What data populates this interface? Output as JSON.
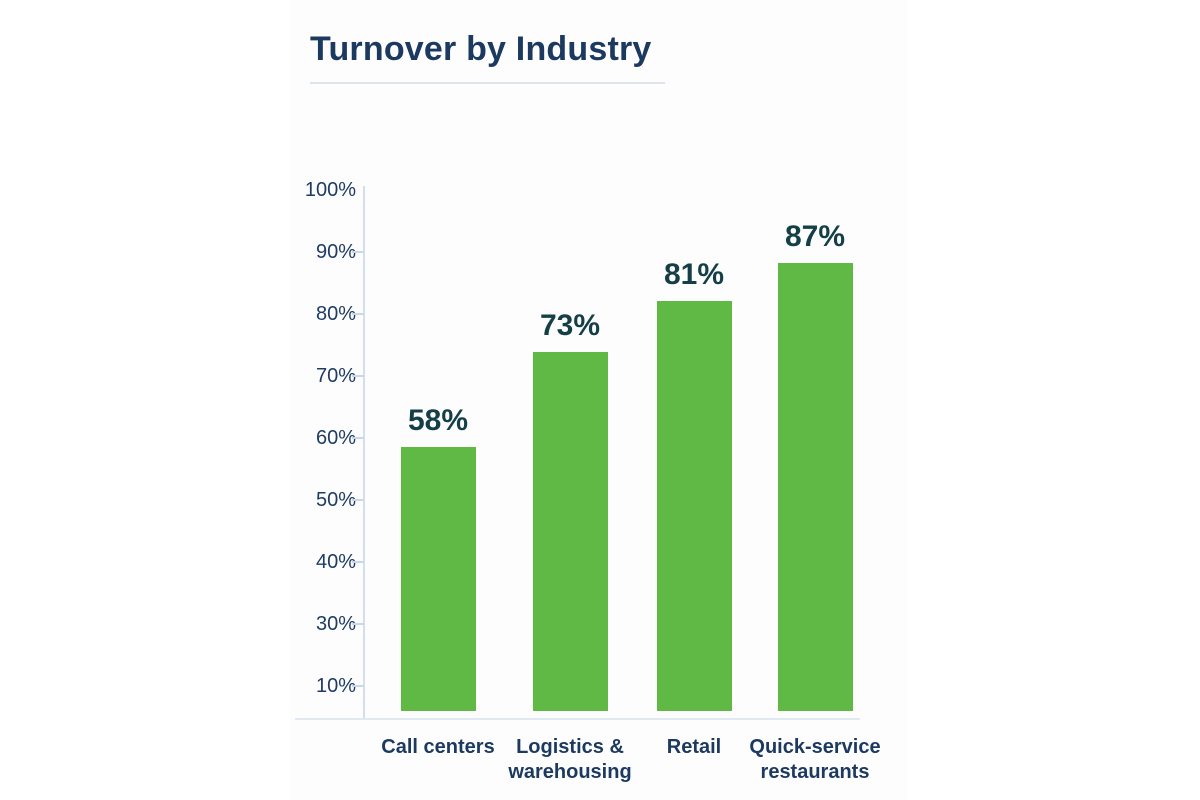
{
  "title": "Turnover by Industry",
  "chart_data": {
    "type": "bar",
    "title": "Turnover by Industry",
    "categories": [
      "Call centers",
      "Logistics &\nwarehousing",
      "Retail",
      "Quick-service\nrestaurants"
    ],
    "values": [
      58,
      73,
      81,
      87
    ],
    "value_labels": [
      "58%",
      "73%",
      "81%",
      "87%"
    ],
    "y_tick_labels": [
      "100%",
      "90%",
      "80%",
      "70%",
      "60%",
      "50%",
      "40%",
      "30%",
      "10%"
    ],
    "ylim": [
      0,
      100
    ],
    "xlabel": "",
    "ylabel": "",
    "grid": false,
    "legend": "none",
    "colors": {
      "bar": "#5fb944",
      "value_label": "#153f47",
      "axis_text": "#1e3c64",
      "category_text": "#1c3a5f",
      "title_text": "#1c3a60",
      "axis_line": "#d3dfee"
    }
  }
}
